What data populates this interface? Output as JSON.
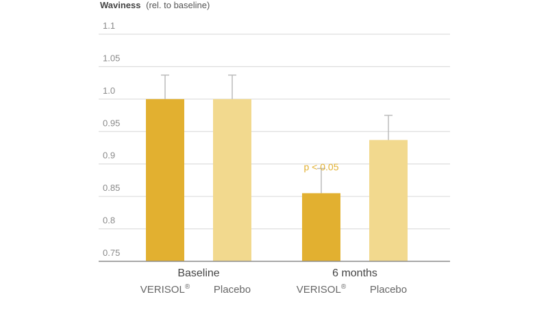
{
  "chart_data": {
    "type": "bar",
    "ylabel": "Waviness",
    "ylabel_note": "(rel. to baseline)",
    "ylim": [
      0.75,
      1.1
    ],
    "yticks": [
      0.75,
      0.8,
      0.85,
      0.9,
      0.95,
      1.0,
      1.05,
      1.1
    ],
    "ytick_labels": [
      "0.75",
      "0.8",
      "0.85",
      "0.9",
      "0.95",
      "1.0",
      "1.05",
      "1.1"
    ],
    "grid": true,
    "categories": [
      "Baseline",
      "6 months"
    ],
    "series": [
      {
        "name": "VERISOL",
        "superscript": "®",
        "color": "#e2b030",
        "values": [
          1.0,
          0.855
        ],
        "error_upper": [
          1.037,
          0.893
        ]
      },
      {
        "name": "Placebo",
        "superscript": "",
        "color": "#f2d98e",
        "values": [
          1.0,
          0.937
        ],
        "error_upper": [
          1.037,
          0.975
        ]
      }
    ],
    "annotations": [
      {
        "text": "p < 0.05",
        "category": 1,
        "series": 0,
        "value": 0.905,
        "color": "#e2b030"
      }
    ],
    "error_bar_color": "#bbbbbb",
    "grid_color": "#d6d6d6",
    "axis_color": "#8a8a8a"
  }
}
